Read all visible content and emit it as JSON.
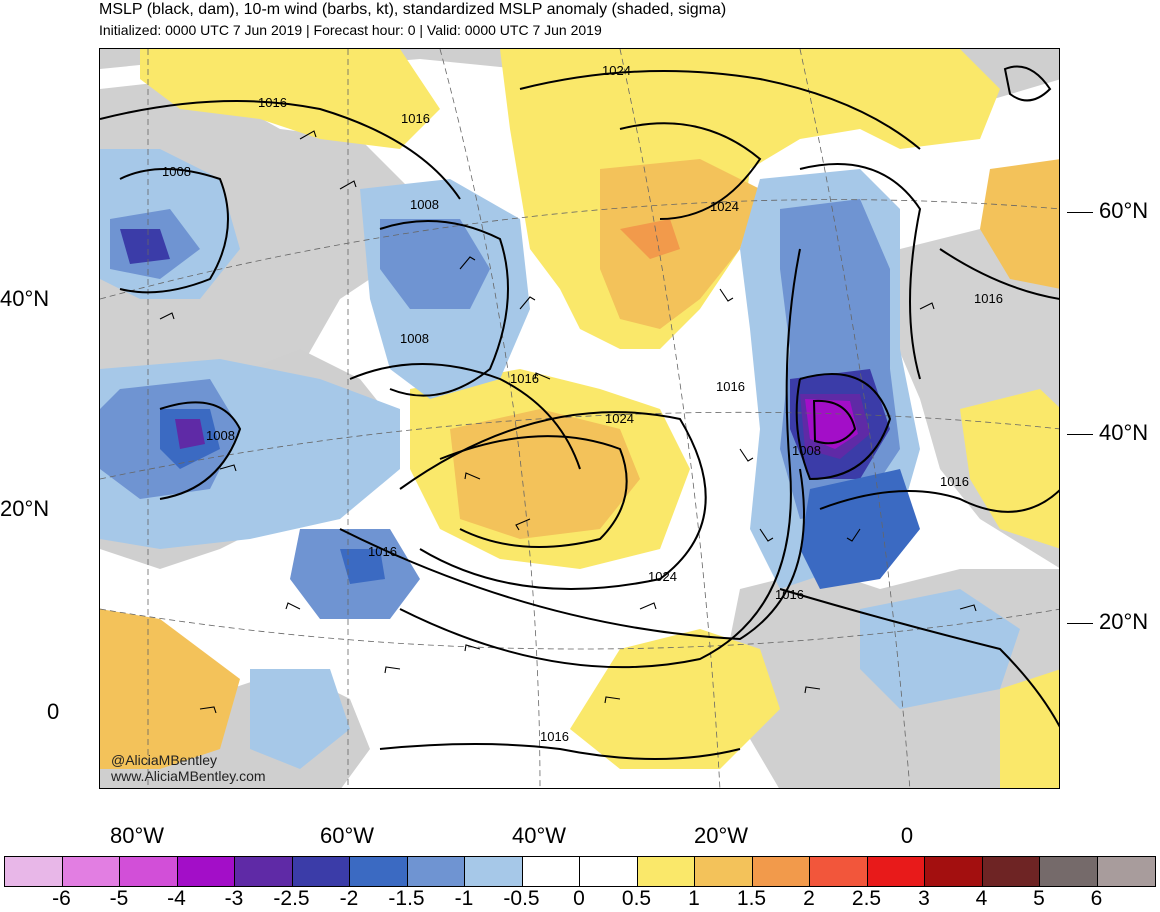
{
  "header": {
    "title": "MSLP (black, dam), 10-m wind (barbs, kt), standardized MSLP anomaly (shaded, sigma)",
    "subtitle": "Initialized: 0000 UTC 7 Jun 2019 | Forecast hour: 0 | Valid: 0000 UTC 7 Jun 2019"
  },
  "map": {
    "left_lat_labels": [
      "40°N",
      "20°N",
      "0"
    ],
    "right_lat_labels": [
      "60°N",
      "40°N",
      "20°N"
    ],
    "lon_labels": [
      "80°W",
      "60°W",
      "40°W",
      "20°W",
      "0"
    ],
    "isobar_labels": [
      "1016",
      "1016",
      "1008",
      "1024",
      "1008",
      "1024",
      "1008",
      "1016",
      "1024",
      "1016",
      "1008",
      "1016",
      "1008",
      "1016",
      "1024",
      "1016",
      "1016",
      "1016"
    ],
    "watermark_handle": "@AliciaMBentley",
    "watermark_url": "www.AliciaMBentley.com"
  },
  "colorbar": {
    "colors": [
      "#e8b7e8",
      "#e27ee2",
      "#d24fd8",
      "#a30ec8",
      "#5f2aa6",
      "#3b3ca8",
      "#3b6ac2",
      "#6f94d2",
      "#a6c8e8",
      "#ffffff",
      "#ffffff",
      "#fae86a",
      "#f3c25a",
      "#f29a4b",
      "#f2563b",
      "#e81a1a",
      "#a30f0f",
      "#6e2424",
      "#756a6a",
      "#a89c9c"
    ],
    "ticks": [
      "-6",
      "-5",
      "-4",
      "-3",
      "-2.5",
      "-2",
      "-1.5",
      "-1",
      "-0.5",
      "0",
      "0.5",
      "1",
      "1.5",
      "2",
      "2.5",
      "3",
      "4",
      "5",
      "6"
    ]
  }
}
